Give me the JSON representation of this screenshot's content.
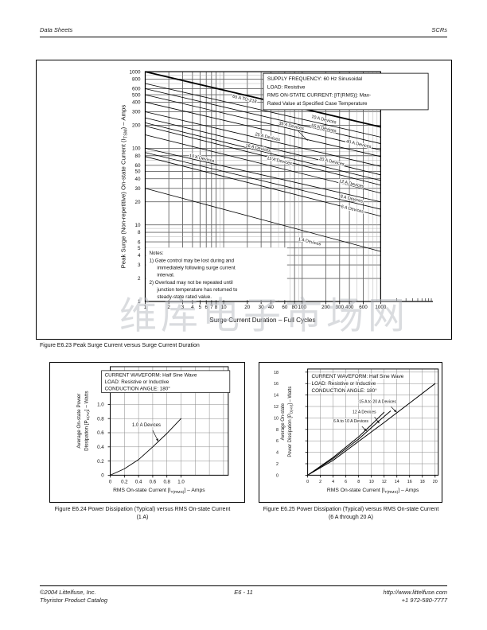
{
  "header": {
    "left": "Data Sheets",
    "right": "SCRs"
  },
  "watermark": "维库电子市场网",
  "footer": {
    "left_line1": "©2004 Littelfuse, Inc.",
    "left_line2": "Thyristor Product Catalog",
    "center": "E6 - 11",
    "right_line1": "http://www.littelfuse.com",
    "right_line2": "+1 972-580-7777"
  },
  "chart_data": [
    {
      "id": "figure-e6-23",
      "type": "line",
      "caption": "Figure E6.23 Peak Surge Current versus Surge Current Duration",
      "x_scale": "log",
      "y_scale": "log",
      "xlim": [
        1,
        1000
      ],
      "ylim": [
        1,
        1000
      ],
      "grid": true,
      "xlabel": "Surge Current Duration – Full Cycles",
      "ylabel": {
        "pre": "Peak Surge (Non-repetitive) On-state Current (I",
        "sub": "TSM",
        "post": ") – Amps"
      },
      "x_ticks": [
        1,
        2,
        3,
        4,
        5,
        6,
        7,
        8,
        10,
        20,
        30,
        40,
        60,
        80,
        100,
        200,
        300,
        400,
        600,
        1000
      ],
      "y_ticks": [
        1,
        2,
        3,
        4,
        5,
        6,
        8,
        10,
        20,
        30,
        40,
        50,
        60,
        80,
        100,
        200,
        300,
        400,
        500,
        600,
        800,
        1000
      ],
      "conditions": [
        "SUPPLY FREQUENCY: 60 Hz Sinusoidal",
        "LOAD: Resistive",
        "RMS ON-STATE CURRENT: [IT(RMS)]: Max-",
        "Rated Value at Specified Case Temperature"
      ],
      "notes": [
        "Notes:",
        "1)  Gate control may be lost during and",
        "immediately following surge current",
        "interval.",
        "2)  Overload may not be repeated until",
        "junction temperature has returned to",
        "steady-state rated value."
      ],
      "series": [
        {
          "name": "65 A TO-218",
          "points": [
            [
              1,
              1000
            ],
            [
              1000,
              190
            ]
          ],
          "thick": true
        },
        {
          "name": "70 A Devices",
          "points": [
            [
              1,
              700
            ],
            [
              1000,
              140
            ]
          ]
        },
        {
          "name": "55 A Devices",
          "points": [
            [
              1,
              600
            ],
            [
              1000,
              115
            ]
          ]
        },
        {
          "name": "40 A Devices",
          "points": [
            [
              1,
              500
            ],
            [
              1000,
              95
            ]
          ]
        },
        {
          "name": "35 A Devices",
          "points": [
            [
              1,
              400
            ],
            [
              1000,
              78
            ]
          ]
        },
        {
          "name": "25 A Devices",
          "points": [
            [
              1,
              300
            ],
            [
              1000,
              58
            ]
          ]
        },
        {
          "name": "20 A Devices",
          "points": [
            [
              1,
              250
            ],
            [
              1000,
              45
            ]
          ]
        },
        {
          "name": "16 A Devices",
          "points": [
            [
              1,
              215
            ],
            [
              1000,
              38
            ]
          ]
        },
        {
          "name": "15 A Devices",
          "points": [
            [
              1,
              195
            ],
            [
              1000,
              33
            ]
          ]
        },
        {
          "name": "12 A Devices",
          "points": [
            [
              1,
              150
            ],
            [
              1000,
              26
            ]
          ]
        },
        {
          "name": "10 A Devices",
          "points": [
            [
              1,
              100
            ],
            [
              1000,
              20
            ]
          ]
        },
        {
          "name": "8 A Devices",
          "points": [
            [
              1,
              88
            ],
            [
              1000,
              16
            ]
          ]
        },
        {
          "name": "6 A Devices",
          "points": [
            [
              1,
              78
            ],
            [
              1000,
              13
            ]
          ]
        },
        {
          "name": "1 A Devices",
          "points": [
            [
              1,
              30
            ],
            [
              1000,
              4.5
            ]
          ]
        }
      ]
    },
    {
      "id": "figure-e6-24",
      "type": "line",
      "caption_line1": "Figure E6.24 Power Dissipation (Typical) versus RMS On-state Current",
      "caption_line2": "(1 A)",
      "x_scale": "linear",
      "y_scale": "linear",
      "xlim": [
        0,
        1.0
      ],
      "ylim": [
        0,
        1.0
      ],
      "grid": true,
      "xlabel": {
        "pre": "RMS On-state Current [I",
        "sub": "T(RMS)",
        "post": "] – Amps"
      },
      "ylabel_line1": "Average On-state Power",
      "ylabel_line2": {
        "pre": "Dissipation [P",
        "sub": "D(AV)",
        "post": "] – Watts"
      },
      "x_ticks": [
        0,
        0.2,
        0.4,
        0.6,
        0.8,
        1.0
      ],
      "y_ticks": [
        0,
        0.2,
        0.4,
        0.6,
        0.8,
        1.0
      ],
      "conditions": [
        "CURRENT WAVEFORM: Half Sine Wave",
        "LOAD: Resistive or Inductive",
        "CONDUCTION ANGLE: 180°"
      ],
      "series": [
        {
          "name": "1.0 A Devices",
          "points": [
            [
              0,
              0
            ],
            [
              0.2,
              0.09
            ],
            [
              0.4,
              0.22
            ],
            [
              0.6,
              0.4
            ],
            [
              0.8,
              0.59
            ],
            [
              1.0,
              0.8
            ]
          ]
        }
      ]
    },
    {
      "id": "figure-e6-25",
      "type": "line",
      "caption_line1": "Figure E6.25 Power Dissipation (Typical) versus RMS On-state Current",
      "caption_line2": "(6 A through 20 A)",
      "x_scale": "linear",
      "y_scale": "linear",
      "xlim": [
        0,
        20
      ],
      "ylim": [
        0,
        18
      ],
      "grid": true,
      "xlabel": {
        "pre": "RMS On-state Current [I",
        "sub": "T(RMS)",
        "post": "] – Amps"
      },
      "ylabel_line1": "Average On-state",
      "ylabel_line2": {
        "pre": "Power Dissipation [P",
        "sub": "D(AV)",
        "post": "] – Watts"
      },
      "x_ticks": [
        0,
        2,
        4,
        6,
        8,
        10,
        12,
        14,
        16,
        18,
        20
      ],
      "y_ticks": [
        0,
        2,
        4,
        6,
        8,
        10,
        12,
        14,
        16,
        18
      ],
      "conditions": [
        "CURRENT WAVEFORM: Half Sine Wave",
        "LOAD: Resistive or Inductive",
        "CONDUCTION ANGLE: 180°"
      ],
      "series": [
        {
          "name": "6 A to 10 A Devices",
          "points": [
            [
              0,
              0
            ],
            [
              4,
              3.1
            ],
            [
              8,
              6.7
            ],
            [
              10,
              8.8
            ],
            [
              12,
              11
            ]
          ]
        },
        {
          "name": "12 A Devices",
          "points": [
            [
              0,
              0
            ],
            [
              4,
              2.9
            ],
            [
              8,
              6.3
            ],
            [
              11,
              9.3
            ],
            [
              13,
              11.2
            ]
          ]
        },
        {
          "name": "15 A to 20 A Devices",
          "points": [
            [
              0,
              0
            ],
            [
              4,
              2.6
            ],
            [
              8,
              5.9
            ],
            [
              12,
              9.2
            ],
            [
              16,
              12.6
            ],
            [
              20,
              16
            ]
          ]
        }
      ]
    }
  ]
}
